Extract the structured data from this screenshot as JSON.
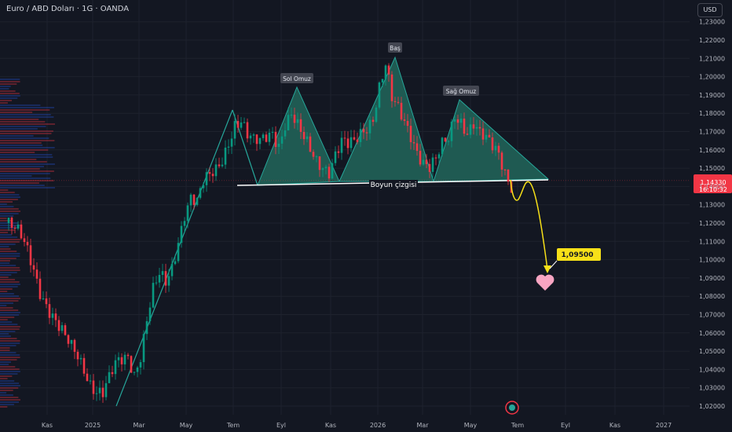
{
  "header": {
    "symbol_title": "Euro / ABD Doları · 1G · OANDA",
    "currency_button": "USD"
  },
  "price_tag": {
    "price": "1,14330",
    "countdown": "16:10:32",
    "color": "#f23645"
  },
  "colors": {
    "up": "#089981",
    "down": "#f23645",
    "pattern_fill": "#1f5a52",
    "forecast": "#f7e018",
    "grid": "#1e222d"
  },
  "chart_data": {
    "type": "candlestick",
    "title": "Euro / ABD Doları · 1G · OANDA",
    "ylim": [
      1.015,
      1.235
    ],
    "y_ticks": [
      "1,02000",
      "1,03000",
      "1,04000",
      "1,05000",
      "1,06000",
      "1,07000",
      "1,08000",
      "1,09000",
      "1,10000",
      "1,11000",
      "1,12000",
      "1,13000",
      "1,14000",
      "1,15000",
      "1,16000",
      "1,17000",
      "1,18000",
      "1,19000",
      "1,20000",
      "1,21000",
      "1,22000",
      "1,23000"
    ],
    "x_ticks": [
      "Kas",
      "2025",
      "Mar",
      "May",
      "Tem",
      "Eyl",
      "Kas",
      "2026",
      "Mar",
      "May",
      "Tem",
      "Eyl",
      "Kas",
      "2027"
    ],
    "price_path": [
      [
        0,
        1.12
      ],
      [
        2,
        1.115
      ],
      [
        4,
        1.11
      ],
      [
        6,
        1.103
      ],
      [
        8,
        1.095
      ],
      [
        10,
        1.085
      ],
      [
        12,
        1.078
      ],
      [
        14,
        1.07
      ],
      [
        16,
        1.062
      ],
      [
        18,
        1.055
      ],
      [
        20,
        1.05
      ],
      [
        22,
        1.047
      ],
      [
        24,
        1.042
      ],
      [
        26,
        1.035
      ],
      [
        28,
        1.03
      ],
      [
        30,
        1.027
      ],
      [
        32,
        1.033
      ],
      [
        34,
        1.04
      ],
      [
        36,
        1.044
      ],
      [
        38,
        1.048
      ],
      [
        40,
        1.04
      ],
      [
        42,
        1.05
      ],
      [
        44,
        1.068
      ],
      [
        46,
        1.082
      ],
      [
        48,
        1.089
      ],
      [
        50,
        1.085
      ],
      [
        52,
        1.095
      ],
      [
        54,
        1.112
      ],
      [
        56,
        1.128
      ],
      [
        58,
        1.136
      ],
      [
        60,
        1.131
      ],
      [
        62,
        1.14
      ],
      [
        64,
        1.143
      ],
      [
        66,
        1.148
      ],
      [
        68,
        1.156
      ],
      [
        70,
        1.167
      ],
      [
        72,
        1.176
      ],
      [
        74,
        1.176
      ],
      [
        76,
        1.166
      ],
      [
        78,
        1.162
      ],
      [
        80,
        1.163
      ],
      [
        82,
        1.168
      ],
      [
        84,
        1.172
      ],
      [
        86,
        1.165
      ],
      [
        88,
        1.175
      ],
      [
        90,
        1.178
      ],
      [
        92,
        1.17
      ],
      [
        94,
        1.164
      ],
      [
        96,
        1.16
      ],
      [
        98,
        1.156
      ],
      [
        100,
        1.154
      ],
      [
        102,
        1.15
      ],
      [
        104,
        1.157
      ],
      [
        106,
        1.162
      ],
      [
        108,
        1.16
      ],
      [
        110,
        1.163
      ],
      [
        112,
        1.17
      ],
      [
        114,
        1.175
      ],
      [
        116,
        1.18
      ],
      [
        118,
        1.195
      ],
      [
        120,
        1.205
      ],
      [
        122,
        1.185
      ],
      [
        124,
        1.18
      ],
      [
        126,
        1.175
      ],
      [
        128,
        1.17
      ],
      [
        130,
        1.162
      ],
      [
        132,
        1.155
      ],
      [
        134,
        1.15
      ],
      [
        136,
        1.152
      ],
      [
        138,
        1.16
      ],
      [
        140,
        1.165
      ],
      [
        142,
        1.18
      ],
      [
        144,
        1.178
      ],
      [
        146,
        1.172
      ],
      [
        148,
        1.175
      ],
      [
        150,
        1.167
      ],
      [
        152,
        1.163
      ],
      [
        154,
        1.16
      ],
      [
        156,
        1.158
      ],
      [
        158,
        1.15
      ],
      [
        160,
        1.143
      ]
    ],
    "head_and_shoulders": {
      "labels": {
        "left_shoulder": "Sol Omuz",
        "head": "Baş",
        "right_shoulder": "Sağ Omuz"
      },
      "neckline_label": "Boyun çizgisi",
      "neckline_price": 1.1433
    },
    "target": {
      "label": "1,09500",
      "value": 1.095
    }
  }
}
